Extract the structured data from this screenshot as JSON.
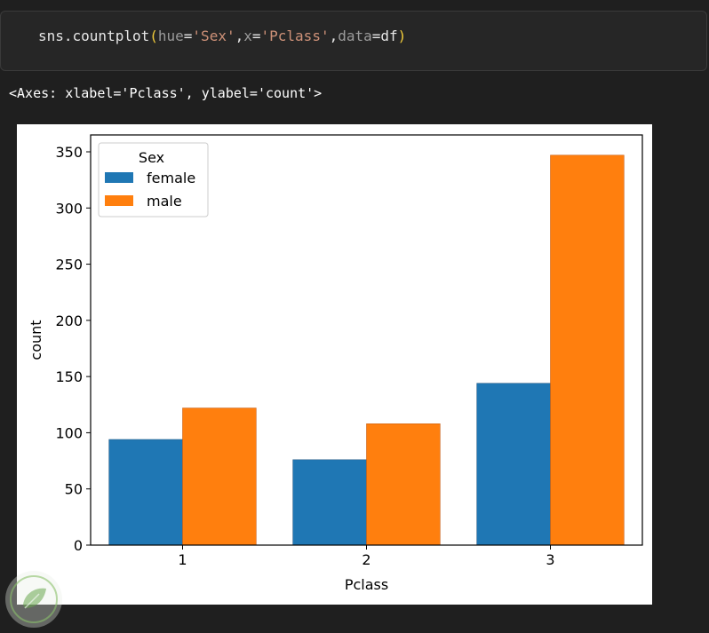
{
  "code_cell": {
    "fn": "sns.countplot",
    "arg1_key": "hue",
    "arg1_val": "'Sex'",
    "arg2_key": "x",
    "arg2_val": "'Pclass'",
    "arg3_key": "data",
    "arg3_val": "df"
  },
  "output": {
    "repr": "<Axes: xlabel='Pclass', ylabel='count'>"
  },
  "chart_data": {
    "type": "bar",
    "categories": [
      "1",
      "2",
      "3"
    ],
    "series": [
      {
        "name": "female",
        "values": [
          94,
          76,
          144
        ],
        "color": "#1f77b4"
      },
      {
        "name": "male",
        "values": [
          122,
          108,
          347
        ],
        "color": "#ff7f0e"
      }
    ],
    "xlabel": "Pclass",
    "ylabel": "count",
    "ylim": [
      0,
      365
    ],
    "yticks": [
      0,
      50,
      100,
      150,
      200,
      250,
      300,
      350
    ],
    "legend": {
      "title": "Sex",
      "placement": "top-left"
    },
    "grid": false
  },
  "watermark": {
    "icon": "leaf-logo-icon"
  }
}
